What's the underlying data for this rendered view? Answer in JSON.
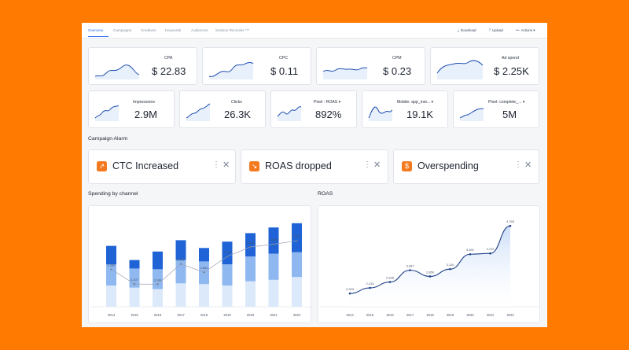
{
  "nav": {
    "tabs": [
      "Overview",
      "Campaigns",
      "Creatives",
      "Keywords",
      "Audiences",
      "Session Recorder ***"
    ],
    "download_label": "Download",
    "upload_label": "Upload",
    "actions_label": "Actions"
  },
  "metrics_top": [
    {
      "label": "CPA",
      "value": "$ 22.83"
    },
    {
      "label": "CPC",
      "value": "$ 0.11"
    },
    {
      "label": "CPM",
      "value": "$ 0.23"
    },
    {
      "label": "Ad spend",
      "value": "$ 2.25K"
    }
  ],
  "metrics_bottom": [
    {
      "label": "Impressions",
      "value": "2.9M"
    },
    {
      "label": "Clicks",
      "value": "26.3K"
    },
    {
      "label": "Pixel : ROAS ▾",
      "value": "892%"
    },
    {
      "label": "Mobile: app_inst... ▾",
      "value": "19.1K"
    },
    {
      "label": "Pixel: complete_... ▾",
      "value": "5M"
    }
  ],
  "alarms": {
    "title": "Campaign Alarm",
    "items": [
      {
        "label": "CTC Increased",
        "icon": "trend-up-icon"
      },
      {
        "label": "ROAS dropped",
        "icon": "trend-down-icon"
      },
      {
        "label": "Overspending",
        "icon": "coin-icon"
      }
    ]
  },
  "spending_title": "Spending by channel",
  "roas_title": "ROAS",
  "colors": {
    "accent": "#2d6ee8",
    "orange": "#f47a1f",
    "bar_dark": "#1f63d6",
    "bar_mid": "#8fb8f0",
    "bar_light": "#dce9fb"
  },
  "chart_data": [
    {
      "type": "bar",
      "stacked": true,
      "title": "Spending by channel",
      "categories": [
        "2014",
        "2015",
        "2016",
        "2017",
        "2018",
        "2019",
        "2020",
        "2021",
        "2022"
      ],
      "series": [
        {
          "values": [
            3000,
            2700,
            2500,
            3300,
            3200,
            3000,
            3600,
            3800,
            4200
          ]
        },
        {
          "values": [
            3000,
            2700,
            2800,
            3300,
            3200,
            3000,
            3500,
            3700,
            3500
          ]
        },
        {
          "values": [
            2600,
            1200,
            2500,
            2800,
            1900,
            3200,
            3300,
            3700,
            4100
          ]
        }
      ],
      "line": {
        "values": [
          5286,
          3207,
          3184,
          6051,
          4863,
          7106,
          8445,
          8835,
          9312
        ],
        "labels": [
          "5,286",
          "3,207",
          "3,184",
          "6,051",
          "4,863",
          "7,106",
          "8,445",
          "8,835",
          "9,312"
        ]
      },
      "ylim": [
        0,
        12000
      ]
    },
    {
      "type": "area",
      "title": "ROAS",
      "x": [
        "2014",
        "2015",
        "2016",
        "2017",
        "2018",
        "2019",
        "2020",
        "2021",
        "2022"
      ],
      "values": [
        2203,
        2415,
        2638,
        3087,
        2850,
        3126,
        3691,
        3722,
        4765
      ],
      "labels": [
        "2,203",
        "2,415",
        "2,638",
        "3,087",
        "2,850",
        "3,126",
        "3,691",
        "3,722",
        "4,765"
      ],
      "ylim": [
        1700,
        5100
      ]
    }
  ]
}
